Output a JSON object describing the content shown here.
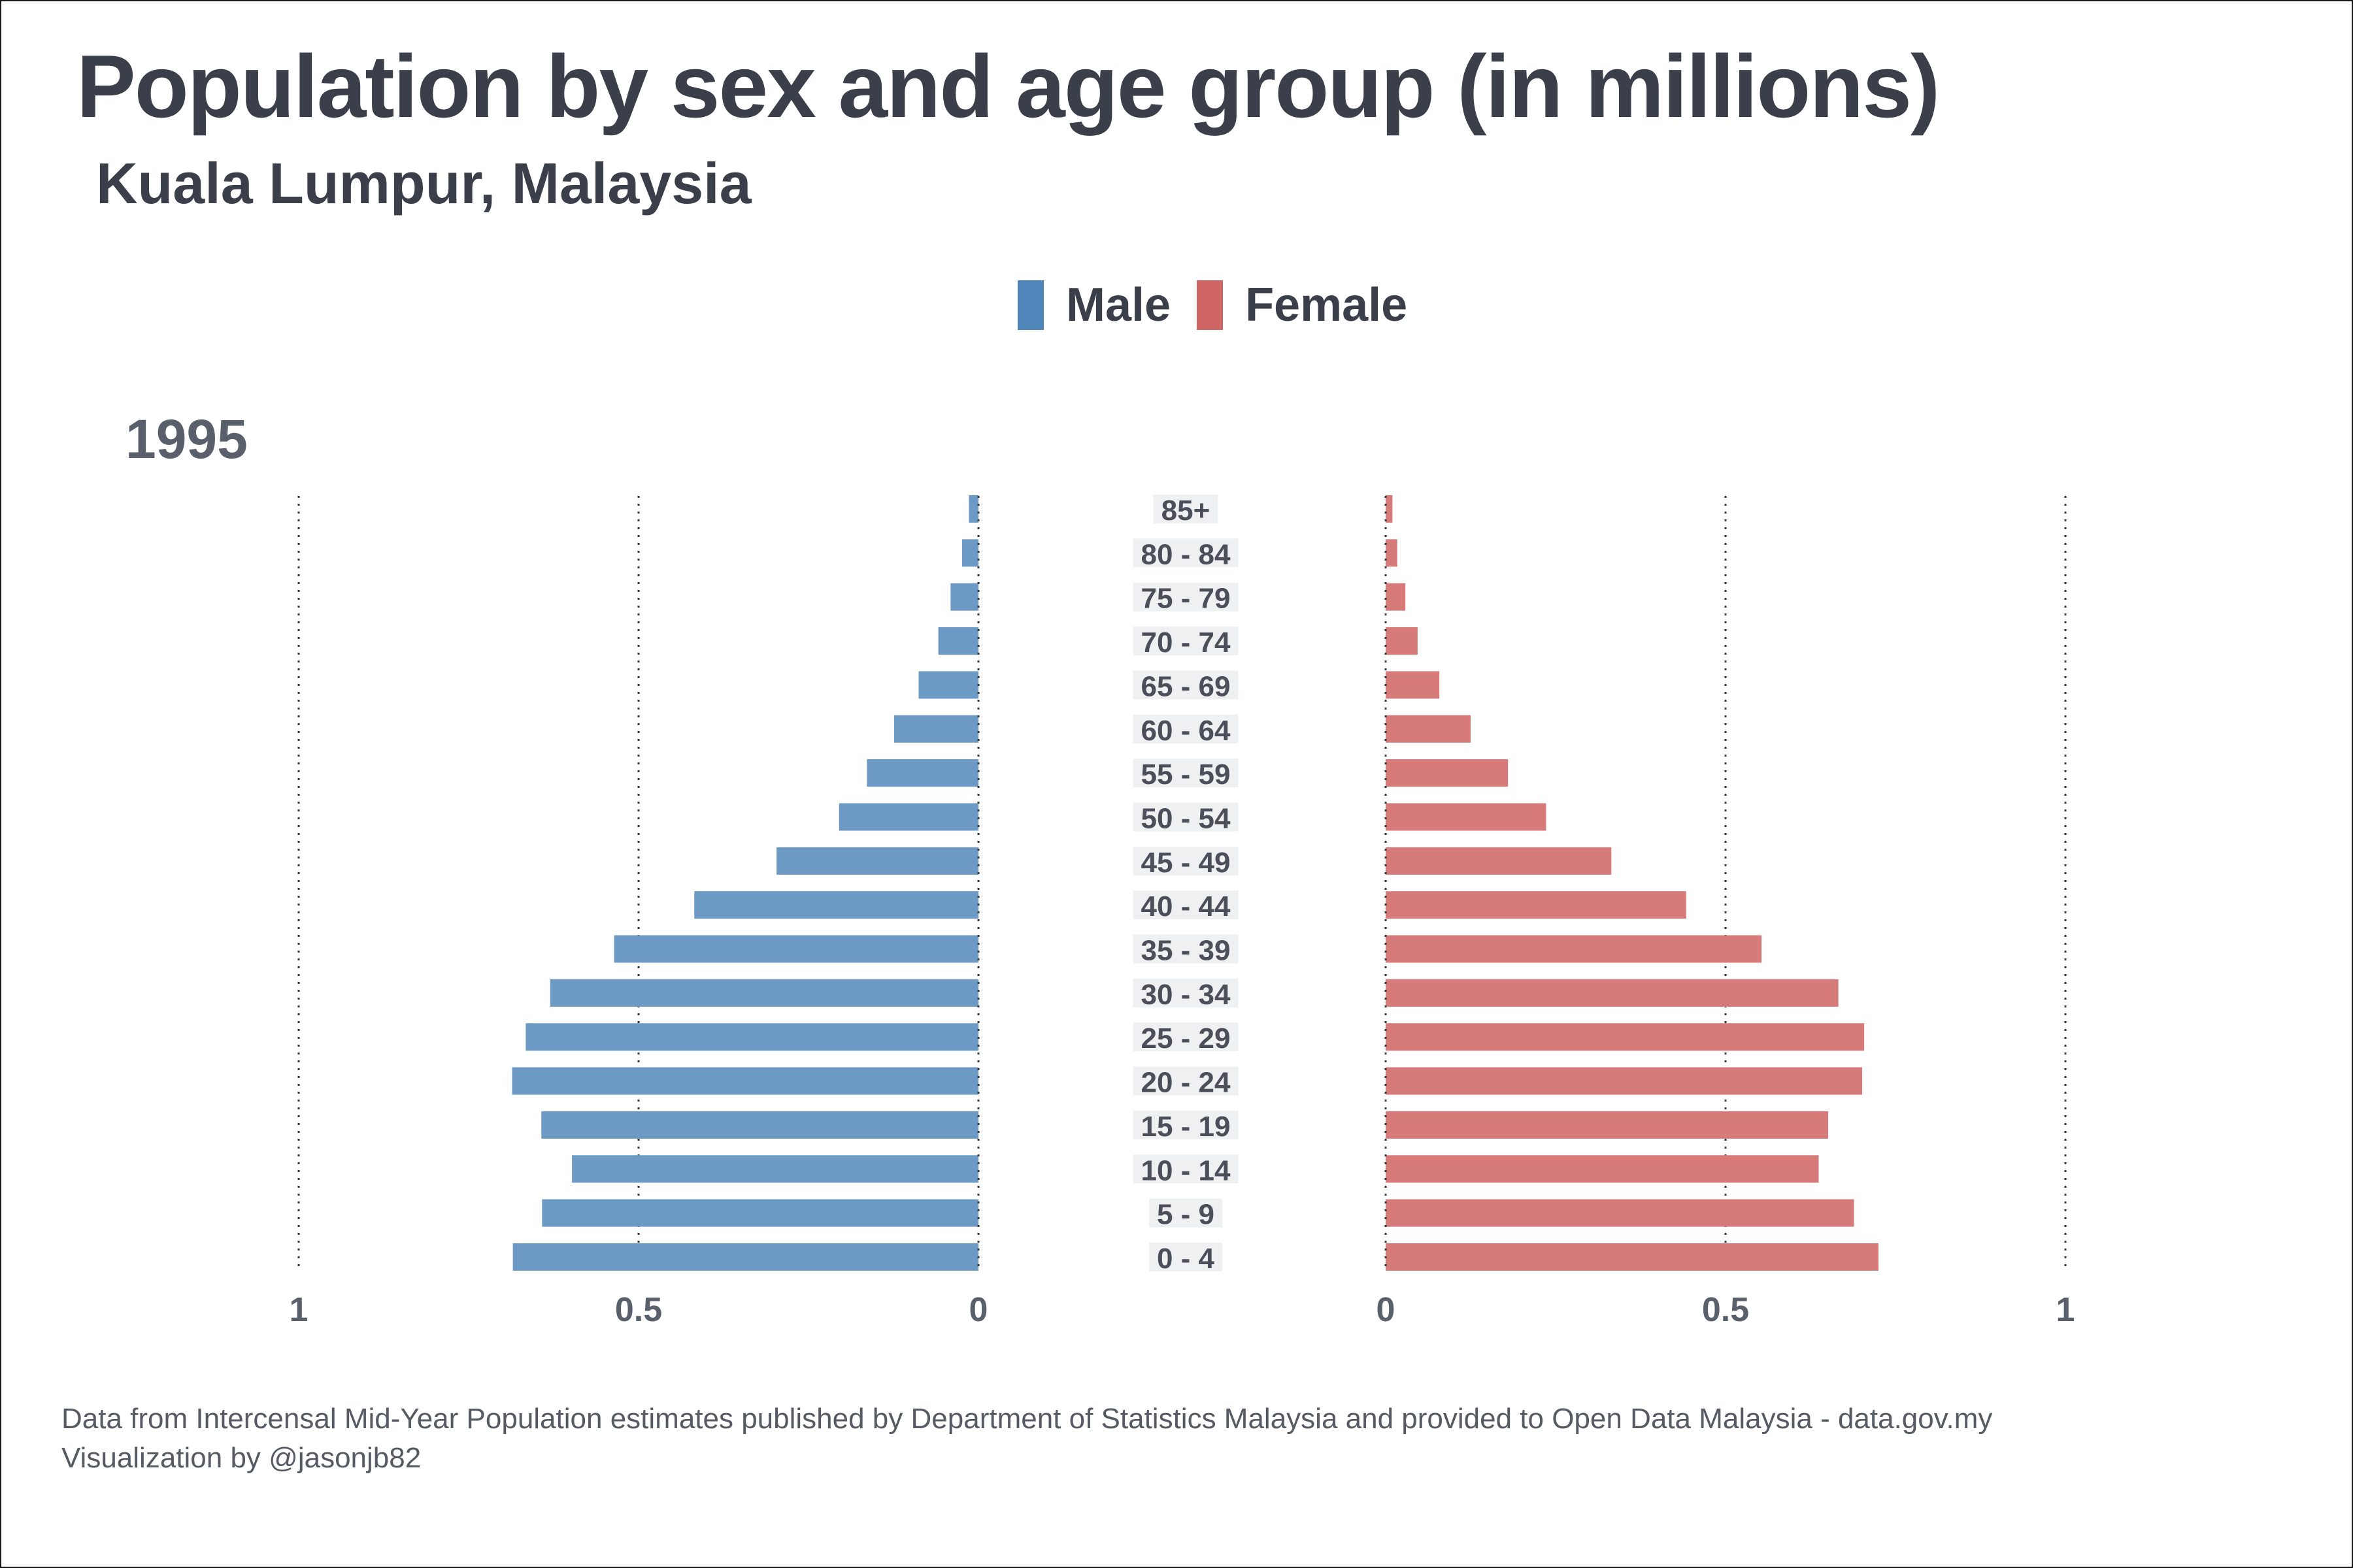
{
  "chart_data": {
    "type": "bar",
    "title": "Population by sex and age group (in millions)",
    "subtitle": "Kuala Lumpur, Malaysia",
    "facet_label": "1995",
    "categories": [
      "0 - 4",
      "5 - 9",
      "10 - 14",
      "15 - 19",
      "20 - 24",
      "25 - 29",
      "30 - 34",
      "35 - 39",
      "40 - 44",
      "45 - 49",
      "50 - 54",
      "55 - 59",
      "60 - 64",
      "65 - 69",
      "70 - 74",
      "75 - 79",
      "80 - 84",
      "85+"
    ],
    "series": [
      {
        "name": "Male",
        "color": "#6c9ac4",
        "values": [
          0.685,
          0.642,
          0.598,
          0.643,
          0.686,
          0.666,
          0.63,
          0.536,
          0.418,
          0.297,
          0.205,
          0.164,
          0.124,
          0.088,
          0.059,
          0.041,
          0.024,
          0.014
        ]
      },
      {
        "name": "Female",
        "color": "#d67a7a",
        "values": [
          0.725,
          0.689,
          0.637,
          0.651,
          0.701,
          0.704,
          0.666,
          0.553,
          0.442,
          0.332,
          0.236,
          0.18,
          0.125,
          0.079,
          0.047,
          0.029,
          0.017,
          0.01
        ]
      }
    ],
    "xlim": [
      0,
      1
    ],
    "x_ticks": [
      {
        "value": 1,
        "label": "1"
      },
      {
        "value": 0.5,
        "label": "0.5"
      },
      {
        "value": 0,
        "label": "0"
      }
    ],
    "grid": true,
    "legend": "top-center"
  },
  "legend": {
    "male_label": "Male",
    "male_color": "#4f86b9",
    "female_label": "Female",
    "female_color": "#d06565"
  },
  "caption": {
    "line1": "Data from Intercensal Mid-Year Population estimates published by Department of Statistics Malaysia and provided to Open Data Malaysia - data.gov.my",
    "line2": "Visualization by @jasonjb82"
  }
}
